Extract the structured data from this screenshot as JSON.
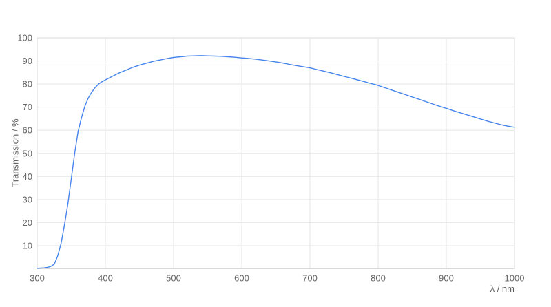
{
  "chart_data": {
    "type": "line",
    "title": "",
    "xlabel": "λ / nm",
    "ylabel": "Transmission / %",
    "xlim": [
      300,
      1000
    ],
    "ylim": [
      0,
      100
    ],
    "x_ticks": [
      300,
      400,
      500,
      600,
      700,
      800,
      900,
      1000
    ],
    "y_ticks": [
      10,
      20,
      30,
      40,
      50,
      60,
      70,
      80,
      90,
      100
    ],
    "grid": true,
    "legend_position": "none",
    "series": [
      {
        "name": "Transmission",
        "x": [
          300,
          305,
          310,
          315,
          320,
          325,
          330,
          335,
          340,
          345,
          350,
          355,
          360,
          365,
          370,
          375,
          380,
          385,
          390,
          395,
          400,
          410,
          420,
          430,
          440,
          450,
          460,
          470,
          480,
          490,
          500,
          510,
          520,
          530,
          540,
          550,
          560,
          570,
          580,
          590,
          600,
          610,
          620,
          630,
          640,
          650,
          660,
          670,
          680,
          690,
          700,
          710,
          720,
          730,
          740,
          750,
          760,
          770,
          780,
          790,
          800,
          810,
          820,
          830,
          840,
          850,
          860,
          870,
          880,
          890,
          900,
          910,
          920,
          930,
          940,
          950,
          960,
          970,
          980,
          990,
          1000
        ],
        "y": [
          0.2,
          0.3,
          0.4,
          0.6,
          1.0,
          2.0,
          5.5,
          11,
          19,
          28,
          39,
          50,
          59.5,
          65.5,
          70.5,
          74,
          76.5,
          78.5,
          80,
          81,
          81.8,
          83.3,
          84.8,
          86,
          87.2,
          88.2,
          89,
          89.8,
          90.4,
          91,
          91.5,
          91.8,
          92.1,
          92.2,
          92.3,
          92.2,
          92.1,
          92,
          91.8,
          91.6,
          91.3,
          91.1,
          90.8,
          90.4,
          90,
          89.6,
          89.1,
          88.5,
          88,
          87.5,
          87,
          86.3,
          85.6,
          84.9,
          84.1,
          83.3,
          82.6,
          81.8,
          81,
          80.2,
          79.4,
          78.4,
          77.4,
          76.4,
          75.4,
          74.4,
          73.4,
          72.4,
          71.4,
          70.4,
          69.5,
          68.5,
          67.6,
          66.7,
          65.8,
          64.9,
          64,
          63.2,
          62.4,
          61.8,
          61.3
        ]
      }
    ]
  },
  "colors": {
    "line": "#4583ec",
    "grid": "#e5e5e5",
    "border": "#d9d9d9",
    "tick_label": "#666666",
    "axis_title": "#616161",
    "background": "#ffffff"
  }
}
